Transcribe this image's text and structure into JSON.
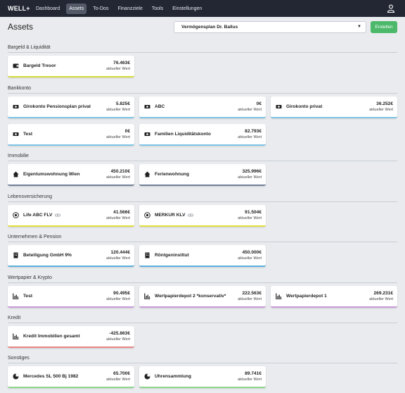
{
  "nav": {
    "brand": "WELL+",
    "items": [
      {
        "label": "Dashboard",
        "active": false
      },
      {
        "label": "Assets",
        "active": true
      },
      {
        "label": "To-Dos",
        "active": false
      },
      {
        "label": "Finanzziele",
        "active": false
      },
      {
        "label": "Tools",
        "active": false
      },
      {
        "label": "Einstellungen",
        "active": false
      }
    ],
    "user_icon": "user-icon"
  },
  "page": {
    "title": "Assets",
    "plan_select": "Vermögensplan Dr. Ballus",
    "create_button": "Erstellen"
  },
  "card_sub": "aktueller Wert",
  "sections": [
    {
      "title": "Bargeld & Liquidität",
      "color": "#d6dd3c",
      "cards": [
        {
          "name": "Bargeld Tresor",
          "value": "76.463€",
          "icon": "wallet-icon"
        }
      ]
    },
    {
      "title": "Bankkonto",
      "color": "#7ec4e6",
      "cards": [
        {
          "name": "Girokonto Pensionsplan privat",
          "value": "5.825€",
          "icon": "cash-icon"
        },
        {
          "name": "ABC",
          "value": "0€",
          "icon": "cash-icon"
        },
        {
          "name": "Girokonto privat",
          "value": "36.252€",
          "icon": "cash-icon"
        },
        {
          "name": "Test",
          "value": "0€",
          "icon": "cash-icon"
        },
        {
          "name": "Familien Liquiditätskonto",
          "value": "82.793€",
          "icon": "cash-icon"
        }
      ]
    },
    {
      "title": "Immobilie",
      "color": "#6e7f96",
      "cards": [
        {
          "name": "Eigentumswohnung Wien",
          "value": "450.210€",
          "icon": "home-icon"
        },
        {
          "name": "Ferienwohnung",
          "value": "325.996€",
          "icon": "home-icon"
        }
      ]
    },
    {
      "title": "Lebensversicherung",
      "color": "#e0df3e",
      "cards": [
        {
          "name": "Life ABC FLV",
          "value": "41.566€",
          "icon": "insurance-icon",
          "linked": true
        },
        {
          "name": "MERKUR KLV",
          "value": "91.504€",
          "icon": "insurance-icon",
          "linked": true
        }
      ]
    },
    {
      "title": "Unternehmen & Pension",
      "color": "#5ab0de",
      "cards": [
        {
          "name": "Beteiligung GmbH 9%",
          "value": "120.444€",
          "icon": "building-icon"
        },
        {
          "name": "Röntgeninstitut",
          "value": "450.000€",
          "icon": "building-icon"
        }
      ]
    },
    {
      "title": "Wertpapier & Krypto",
      "color": "#c89ad8",
      "cards": [
        {
          "name": "Test",
          "value": "90.495€",
          "icon": "chart-icon"
        },
        {
          "name": "Wertpapierdepot 2 *konservativ*",
          "value": "222.563€",
          "icon": "chart-icon"
        },
        {
          "name": "Wertpapierdepot 1",
          "value": "269.231€",
          "icon": "chart-icon"
        }
      ]
    },
    {
      "title": "Kredit",
      "color": "#e88585",
      "cards": [
        {
          "name": "Kredit Immobilien gesamt",
          "value": "-425.863€",
          "icon": "chart-icon"
        }
      ]
    },
    {
      "title": "Sonstiges",
      "color": "#8ed48e",
      "cards": [
        {
          "name": "Mercedes SL 500 Bj 1982",
          "value": "65.700€",
          "icon": "pie-chart-icon"
        },
        {
          "name": "Uhrensammlung",
          "value": "89.741€",
          "icon": "pie-chart-icon"
        }
      ]
    }
  ]
}
